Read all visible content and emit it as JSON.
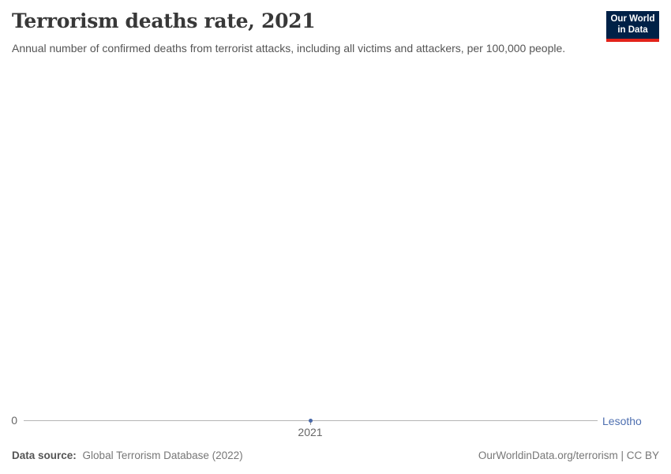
{
  "header": {
    "title": "Terrorism deaths rate, 2021",
    "subtitle": "Annual number of confirmed deaths from terrorist attacks, including all victims and attackers, per 100,000 people.",
    "logo": {
      "line1": "Our World",
      "line2": "in Data",
      "bg_color": "#002147",
      "accent_color": "#e2231a"
    }
  },
  "chart": {
    "y_zero_label": "0",
    "x_tick_label": "2021",
    "entity_label": "Lesotho",
    "entity_color": "#4e6fb0",
    "point_color": "#4868a8",
    "axis_color": "#b5b5b5"
  },
  "chart_data": {
    "type": "line",
    "title": "Terrorism deaths rate, 2021",
    "subtitle": "Annual number of confirmed deaths from terrorist attacks, including all victims and attackers, per 100,000 people.",
    "x": [
      2021
    ],
    "series": [
      {
        "name": "Lesotho",
        "values": [
          0
        ]
      }
    ],
    "xlabel": "",
    "ylabel": "",
    "x_ticks": [
      "2021"
    ],
    "y_ticks": [
      "0"
    ],
    "ylim": [
      0,
      0
    ],
    "grid": false,
    "legend_position": "right-of-line"
  },
  "footer": {
    "source_label": "Data source:",
    "source_value": "Global Terrorism Database (2022)",
    "attribution": "OurWorldinData.org/terrorism | CC BY"
  }
}
